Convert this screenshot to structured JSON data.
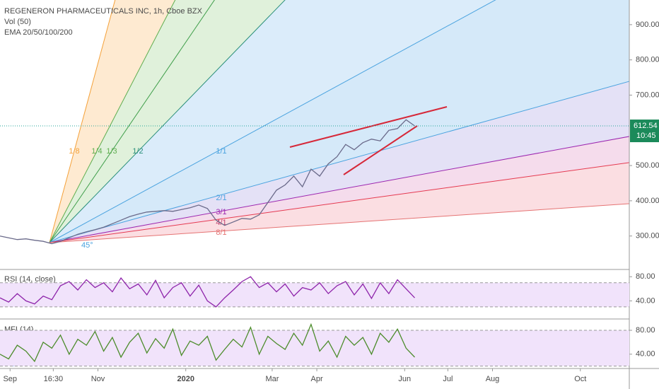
{
  "chart_data": [
    {
      "type": "line",
      "title": "REGENERON PHARMACEUTICALS INC, 1h, Cboe BZX",
      "indicators": [
        "Vol (50)",
        "EMA 20/50/100/200"
      ],
      "color": "#6a6a8a",
      "x": [
        -7,
        -1,
        5,
        11,
        17,
        23,
        29,
        35,
        41,
        47,
        53,
        59,
        65,
        71,
        77,
        83,
        89,
        95,
        101,
        107,
        113,
        119,
        125,
        131,
        137,
        143,
        149,
        155,
        161,
        167,
        173,
        179,
        185,
        191,
        197,
        203,
        209,
        215,
        221,
        227,
        233,
        239,
        245,
        251,
        257,
        263,
        269,
        275,
        281
      ],
      "values": [
        300,
        295,
        290,
        292,
        288,
        285,
        278,
        285,
        295,
        305,
        312,
        318,
        325,
        335,
        345,
        355,
        362,
        368,
        370,
        372,
        370,
        375,
        380,
        388,
        378,
        345,
        330,
        340,
        350,
        348,
        360,
        395,
        430,
        445,
        470,
        440,
        490,
        470,
        505,
        525,
        560,
        545,
        565,
        575,
        570,
        600,
        605,
        630,
        612.54
      ],
      "countdown": "10:45",
      "fan_labels": [
        "1/8",
        "1/4",
        "1/3",
        "1/2",
        "1/1",
        "2/1",
        "3/1",
        "4/1",
        "8/1"
      ],
      "angle_label": "45°",
      "xlim": [
        -7,
        430
      ],
      "xticks": [
        {
          "value": 0,
          "label": "Sep"
        },
        {
          "value": 30,
          "label": "16:30"
        },
        {
          "value": 61,
          "label": "Nov"
        },
        {
          "value": 122,
          "label": "2020"
        },
        {
          "value": 182,
          "label": "Mar"
        },
        {
          "value": 213,
          "label": "Apr"
        },
        {
          "value": 274,
          "label": "Jun"
        },
        {
          "value": 304,
          "label": "Jul"
        },
        {
          "value": 335,
          "label": "Aug"
        },
        {
          "value": 396,
          "label": "Oct"
        }
      ],
      "ylim": [
        205,
        970
      ],
      "yticks": [
        {
          "value": 300,
          "label": "300.00"
        },
        {
          "value": 400,
          "label": "400.00"
        },
        {
          "value": 500,
          "label": "500.00"
        },
        {
          "value": 700,
          "label": "700.00"
        },
        {
          "value": 800,
          "label": "800.00"
        },
        {
          "value": 900,
          "label": "900.00"
        }
      ]
    },
    {
      "type": "line",
      "title": "RSI (14, close)",
      "color": "#8e24aa",
      "x": [
        -7,
        -1,
        5,
        11,
        17,
        23,
        29,
        35,
        41,
        47,
        53,
        59,
        65,
        71,
        77,
        83,
        89,
        95,
        101,
        107,
        113,
        119,
        125,
        131,
        137,
        143,
        149,
        155,
        161,
        167,
        173,
        179,
        185,
        191,
        197,
        203,
        209,
        215,
        221,
        227,
        233,
        239,
        245,
        251,
        257,
        263,
        269,
        275,
        281
      ],
      "values": [
        45,
        38,
        52,
        40,
        35,
        48,
        42,
        65,
        72,
        58,
        75,
        62,
        70,
        55,
        78,
        60,
        68,
        50,
        74,
        45,
        62,
        70,
        48,
        66,
        40,
        30,
        45,
        58,
        72,
        80,
        62,
        70,
        55,
        68,
        48,
        62,
        58,
        70,
        52,
        65,
        72,
        50,
        68,
        44,
        70,
        52,
        75,
        60,
        45
      ],
      "band": [
        30,
        70
      ],
      "ylim": [
        10,
        92
      ],
      "yticks": [
        {
          "value": 80,
          "label": "80.00"
        },
        {
          "value": 40,
          "label": "40.00"
        }
      ]
    },
    {
      "type": "line",
      "title": "MFI (14)",
      "color": "#4c8c2b",
      "x": [
        -7,
        -1,
        5,
        11,
        17,
        23,
        29,
        35,
        41,
        47,
        53,
        59,
        65,
        71,
        77,
        83,
        89,
        95,
        101,
        107,
        113,
        119,
        125,
        131,
        137,
        143,
        149,
        155,
        161,
        167,
        173,
        179,
        185,
        191,
        197,
        203,
        209,
        215,
        221,
        227,
        233,
        239,
        245,
        251,
        257,
        263,
        269,
        275,
        281
      ],
      "values": [
        40,
        32,
        55,
        45,
        28,
        60,
        50,
        72,
        40,
        65,
        55,
        78,
        45,
        68,
        35,
        60,
        75,
        42,
        66,
        50,
        82,
        38,
        62,
        55,
        70,
        30,
        48,
        65,
        52,
        85,
        40,
        70,
        58,
        48,
        75,
        55,
        90,
        45,
        62,
        35,
        70,
        55,
        68,
        40,
        75,
        60,
        82,
        50,
        35
      ],
      "band": [
        20,
        80
      ],
      "ylim": [
        16,
        99
      ],
      "yticks": [
        {
          "value": 80,
          "label": "80.00"
        },
        {
          "value": 40,
          "label": "40.00"
        }
      ]
    }
  ]
}
